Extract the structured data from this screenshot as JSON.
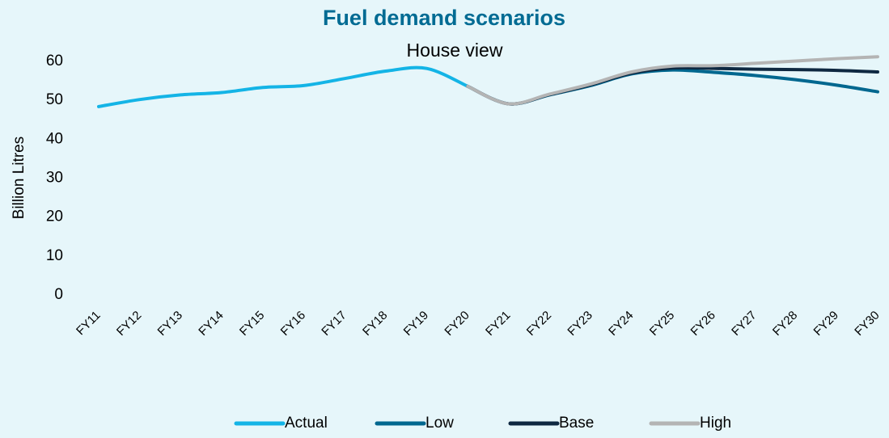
{
  "chart_data": {
    "type": "line",
    "title": "Fuel demand scenarios",
    "subtitle": "House view",
    "y_label": "Billion Litres",
    "categories": [
      "FY11",
      "FY12",
      "FY13",
      "FY14",
      "FY15",
      "FY16",
      "FY17",
      "FY18",
      "FY19",
      "FY20",
      "FY21",
      "FY22",
      "FY23",
      "FY24",
      "FY25",
      "FY26",
      "FY27",
      "FY28",
      "FY29",
      "FY30"
    ],
    "series": [
      {
        "name": "Actual",
        "color": "#14b4e6",
        "values": [
          48.4,
          50.2,
          51.4,
          52.0,
          53.3,
          53.8,
          55.6,
          57.5,
          58.2,
          53.6,
          null,
          null,
          null,
          null,
          null,
          null,
          null,
          null,
          null,
          null
        ]
      },
      {
        "name": "Low",
        "color": "#00678f",
        "values": [
          null,
          null,
          null,
          null,
          null,
          null,
          null,
          null,
          null,
          53.6,
          49.1,
          51.4,
          53.8,
          56.8,
          57.8,
          57.2,
          56.4,
          55.3,
          53.9,
          52.2
        ]
      },
      {
        "name": "Base",
        "color": "#0e2841",
        "values": [
          null,
          null,
          null,
          null,
          null,
          null,
          null,
          null,
          null,
          53.6,
          49.1,
          51.5,
          54.0,
          57.0,
          58.3,
          58.2,
          58.0,
          57.9,
          57.7,
          57.3
        ]
      },
      {
        "name": "High",
        "color": "#b4b4b4",
        "values": [
          null,
          null,
          null,
          null,
          null,
          null,
          null,
          null,
          null,
          53.6,
          49.1,
          51.6,
          54.2,
          57.3,
          58.8,
          58.9,
          59.5,
          60.1,
          60.7,
          61.2
        ]
      }
    ],
    "ylim": [
      0,
      60
    ],
    "yticks": [
      0,
      10,
      20,
      30,
      40,
      50,
      60
    ],
    "grid": false,
    "legend": "bottom"
  }
}
